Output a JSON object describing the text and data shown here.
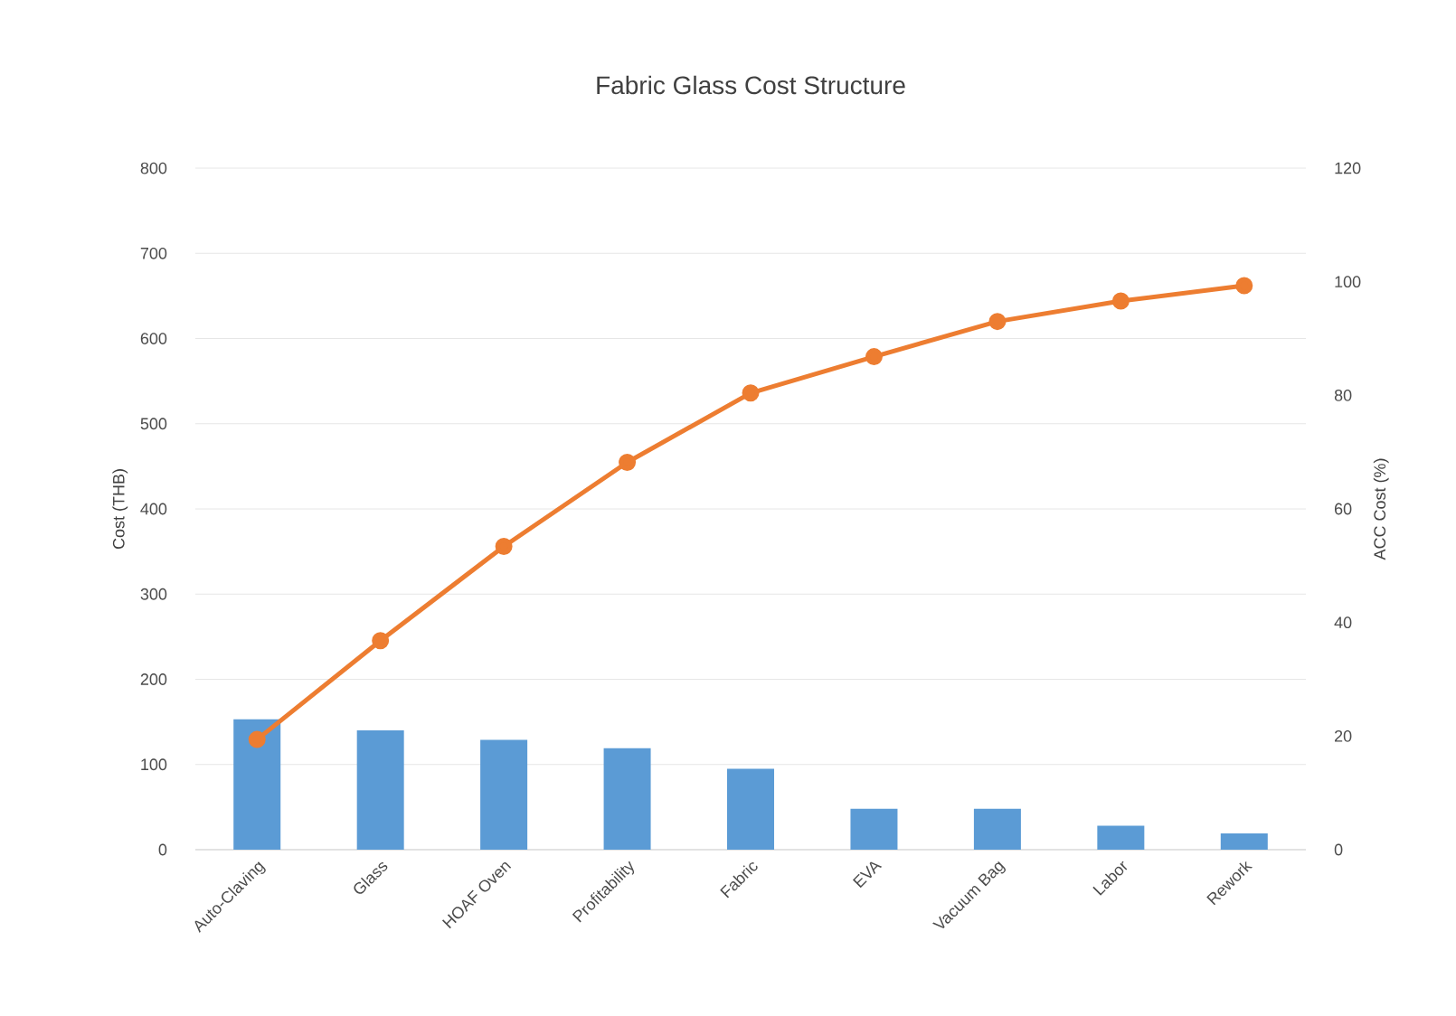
{
  "chart_data": {
    "type": "bar",
    "title": "Fabric Glass Cost Structure",
    "ylabel": "Cost (THB)",
    "y2label": "ACC Cost (%)",
    "categories": [
      "Auto-Claving",
      "Glass",
      "HOAF Oven",
      "Profitability",
      "Fabric",
      "EVA",
      "Vacuum Bag",
      "Labor",
      "Rework"
    ],
    "series": [
      {
        "color": "#5b9bd5",
        "values": [
          153,
          140,
          129,
          119,
          95,
          48,
          48,
          28,
          19
        ]
      },
      {
        "type": "line",
        "axis": "y2",
        "color": "#ed7d31",
        "values": [
          19.4,
          36.8,
          53.4,
          68.2,
          80.4,
          86.8,
          93,
          96.6,
          99.3
        ]
      }
    ],
    "ylim": [
      0,
      800
    ],
    "yticks": [
      0,
      100,
      200,
      300,
      400,
      500,
      600,
      700,
      800
    ],
    "y2lim": [
      0,
      120
    ],
    "y2ticks": [
      0,
      20,
      40,
      60,
      80,
      100,
      120
    ],
    "grid": "y",
    "marker": "circle"
  }
}
